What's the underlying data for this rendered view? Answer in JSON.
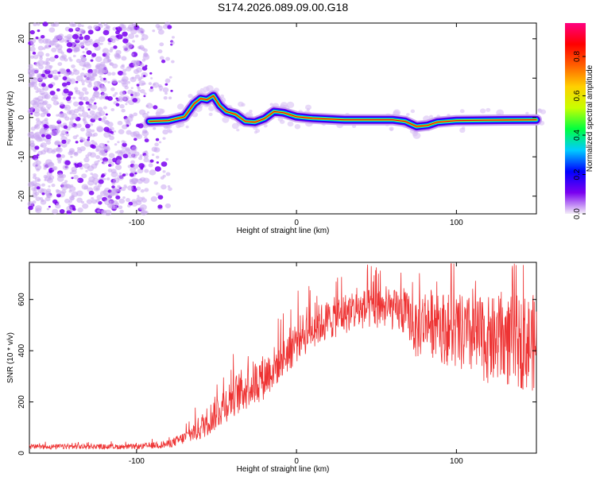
{
  "title": "S174.2026.089.09.00.G18",
  "chart_data": [
    {
      "type": "heatmap",
      "name": "spectrogram",
      "xlabel": "Height of straight line (km)",
      "ylabel": "Frequency (Hz)",
      "xlim": [
        -167,
        150
      ],
      "ylim": [
        -24.5,
        24
      ],
      "x_ticks": [
        -100,
        0,
        100
      ],
      "x_tick_labels": [
        "-100",
        "0",
        "100"
      ],
      "y_ticks": [
        -20,
        -10,
        0,
        10,
        20
      ],
      "y_tick_labels": [
        "-20",
        "-10",
        "0",
        "10",
        "20"
      ],
      "ridge": [
        {
          "x": -92,
          "y": -1.0
        },
        {
          "x": -80,
          "y": -0.8
        },
        {
          "x": -70,
          "y": 0.2
        },
        {
          "x": -64,
          "y": 3.5
        },
        {
          "x": -60,
          "y": 4.8
        },
        {
          "x": -56,
          "y": 4.5
        },
        {
          "x": -52,
          "y": 5.5
        },
        {
          "x": -48,
          "y": 3.0
        },
        {
          "x": -44,
          "y": 1.5
        },
        {
          "x": -38,
          "y": 0.8
        },
        {
          "x": -32,
          "y": -1.0
        },
        {
          "x": -26,
          "y": -1.2
        },
        {
          "x": -20,
          "y": -0.3
        },
        {
          "x": -14,
          "y": 1.5
        },
        {
          "x": -8,
          "y": 1.2
        },
        {
          "x": 0,
          "y": 0.2
        },
        {
          "x": 10,
          "y": -0.2
        },
        {
          "x": 30,
          "y": -0.6
        },
        {
          "x": 60,
          "y": -0.6
        },
        {
          "x": 68,
          "y": -1.0
        },
        {
          "x": 75,
          "y": -2.3
        },
        {
          "x": 82,
          "y": -2.0
        },
        {
          "x": 88,
          "y": -1.2
        },
        {
          "x": 100,
          "y": -0.8
        },
        {
          "x": 120,
          "y": -0.7
        },
        {
          "x": 150,
          "y": -0.6
        }
      ]
    },
    {
      "type": "line",
      "name": "snr",
      "xlabel": "Height of straight line (km)",
      "ylabel": "SNR (10 * v/v)",
      "xlim": [
        -167,
        150
      ],
      "ylim": [
        0,
        745
      ],
      "x_ticks": [
        -100,
        0,
        100
      ],
      "x_tick_labels": [
        "-100",
        "0",
        "100"
      ],
      "y_ticks": [
        0,
        200,
        400,
        600
      ],
      "y_tick_labels": [
        "0",
        "200",
        "400",
        "600"
      ],
      "envelope": [
        {
          "x": -167,
          "mean": 25,
          "amp": 10
        },
        {
          "x": -100,
          "mean": 25,
          "amp": 10
        },
        {
          "x": -80,
          "mean": 35,
          "amp": 15
        },
        {
          "x": -70,
          "mean": 60,
          "amp": 25
        },
        {
          "x": -60,
          "mean": 100,
          "amp": 50
        },
        {
          "x": -50,
          "mean": 160,
          "amp": 70
        },
        {
          "x": -40,
          "mean": 220,
          "amp": 80
        },
        {
          "x": -30,
          "mean": 260,
          "amp": 90
        },
        {
          "x": -20,
          "mean": 300,
          "amp": 90
        },
        {
          "x": -10,
          "mean": 360,
          "amp": 80
        },
        {
          "x": 0,
          "mean": 440,
          "amp": 90
        },
        {
          "x": 10,
          "mean": 490,
          "amp": 80
        },
        {
          "x": 20,
          "mean": 520,
          "amp": 80
        },
        {
          "x": 30,
          "mean": 545,
          "amp": 80
        },
        {
          "x": 40,
          "mean": 560,
          "amp": 80
        },
        {
          "x": 50,
          "mean": 565,
          "amp": 80
        },
        {
          "x": 60,
          "mean": 560,
          "amp": 80
        },
        {
          "x": 70,
          "mean": 540,
          "amp": 90
        },
        {
          "x": 75,
          "mean": 470,
          "amp": 110
        },
        {
          "x": 80,
          "mean": 520,
          "amp": 130
        },
        {
          "x": 100,
          "mean": 470,
          "amp": 150
        },
        {
          "x": 120,
          "mean": 440,
          "amp": 170
        },
        {
          "x": 150,
          "mean": 430,
          "amp": 190
        }
      ]
    }
  ],
  "colorbar": {
    "label": "Normalized spectral amplitude",
    "range": [
      0,
      0.97
    ],
    "ticks": [
      0.0,
      0.2,
      0.4,
      0.6,
      0.8
    ],
    "tick_labels": [
      "0.0",
      "0.2",
      "0.4",
      "0.6",
      "0.8"
    ],
    "colors": [
      "#f4eef8",
      "#7a00f0",
      "#0000ff",
      "#00ccff",
      "#00ff40",
      "#c8ff00",
      "#ffd000",
      "#ff6000",
      "#ff0000",
      "#ff0080"
    ]
  },
  "colors": {
    "line": "#ee3333",
    "axis": "#000000"
  }
}
